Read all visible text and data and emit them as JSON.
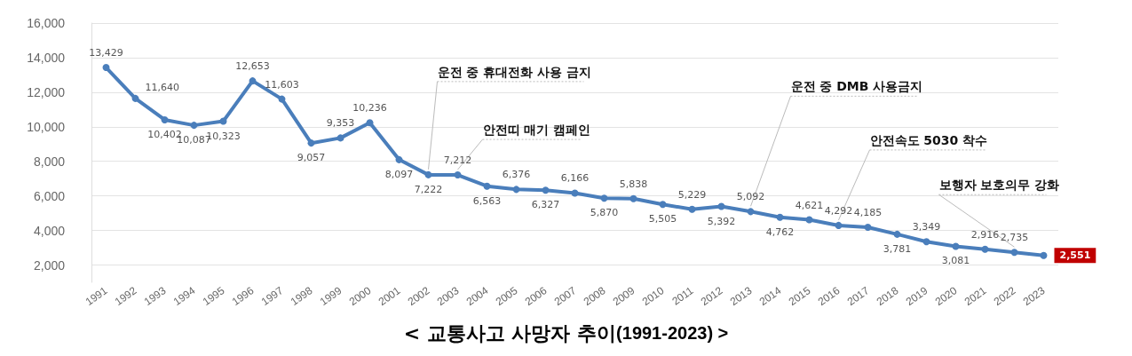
{
  "chart_data": {
    "type": "line",
    "title": "< 교통사고 사망자 추이(1991-2023) >",
    "categories": [
      "1991",
      "1992",
      "1993",
      "1994",
      "1995",
      "1996",
      "1997",
      "1998",
      "1999",
      "2000",
      "2001",
      "2002",
      "2003",
      "2004",
      "2005",
      "2006",
      "2007",
      "2008",
      "2009",
      "2010",
      "2011",
      "2012",
      "2013",
      "2014",
      "2015",
      "2016",
      "2017",
      "2018",
      "2019",
      "2020",
      "2021",
      "2022",
      "2023"
    ],
    "series": [
      {
        "color": "#4a7ebb",
        "values": [
          13429,
          11640,
          10402,
          10087,
          10323,
          12653,
          11603,
          9057,
          9353,
          10236,
          8097,
          7222,
          7212,
          6563,
          6376,
          6327,
          6166,
          5870,
          5838,
          5505,
          5229,
          5392,
          5092,
          4762,
          4621,
          4292,
          4185,
          3781,
          3349,
          3081,
          2916,
          2735,
          2551
        ]
      }
    ],
    "ylim": [
      1000,
      16000
    ],
    "yticks": [
      {
        "value": 2000,
        "label": "2,000"
      },
      {
        "value": 4000,
        "label": "4,000"
      },
      {
        "value": 6000,
        "label": "6,000"
      },
      {
        "value": 8000,
        "label": "8,000"
      },
      {
        "value": 10000,
        "label": "10,000"
      },
      {
        "value": 12000,
        "label": "12,000"
      },
      {
        "value": 14000,
        "label": "14,000"
      },
      {
        "value": 16000,
        "label": "16,000"
      }
    ],
    "grid": "y",
    "marker": "circle",
    "line_style": "solid",
    "value_labels": [
      "13,429",
      "11,640",
      "10,402",
      "10,087",
      "10,323",
      "12,653",
      "11,603",
      "9,057",
      "9,353",
      "10,236",
      "8,097",
      "7,222",
      "7,212",
      "6,563",
      "6,376",
      "6,327",
      "6,166",
      "5,870",
      "5,838",
      "5,505",
      "5,229",
      "5,392",
      "5,092",
      "4,762",
      "4,621",
      "4,292",
      "4,185",
      "3,781",
      "3,349",
      "3,081",
      "2,916",
      "2,735",
      "2,551"
    ],
    "annotations": [
      {
        "text": "운전 중 휴대전화 사용 금지",
        "x": "2002",
        "y": 7222
      },
      {
        "text": "안전띠 매기 캠페인",
        "x": "2003",
        "y": 7212
      },
      {
        "text": "운전 중 DMB 사용금지",
        "x": "2013",
        "y": 5092
      },
      {
        "text": "안전속도 5030 착수",
        "x": "2016",
        "y": 4292
      },
      {
        "text": "보행자 보호의무 강화",
        "x": "2022",
        "y": 2735
      }
    ]
  }
}
